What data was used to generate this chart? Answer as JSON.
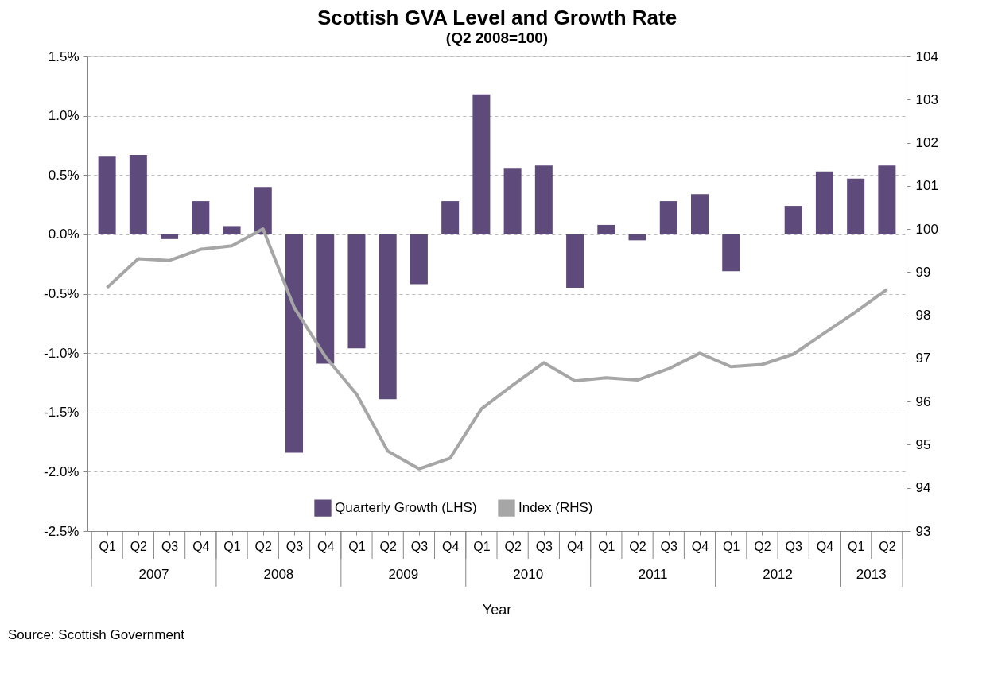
{
  "chart_data": {
    "type": "bar",
    "title": "Scottish GVA Level and Growth Rate",
    "subtitle": "(Q2 2008=100)",
    "xlabel": "Year",
    "categories": [
      "Q1",
      "Q2",
      "Q3",
      "Q4",
      "Q1",
      "Q2",
      "Q3",
      "Q4",
      "Q1",
      "Q2",
      "Q3",
      "Q4",
      "Q1",
      "Q2",
      "Q3",
      "Q4",
      "Q1",
      "Q2",
      "Q3",
      "Q4",
      "Q1",
      "Q2",
      "Q3",
      "Q4",
      "Q1",
      "Q2"
    ],
    "series": [
      {
        "name": "Quarterly Growth (LHS)",
        "color": "#5e4b7c",
        "values": [
          0.66,
          0.67,
          -0.04,
          0.28,
          0.07,
          0.4,
          -1.84,
          -1.09,
          -0.96,
          -1.39,
          -0.42,
          0.28,
          1.18,
          0.56,
          0.58,
          -0.45,
          0.08,
          -0.05,
          0.28,
          0.34,
          -0.31,
          0.0,
          0.24,
          0.53,
          0.47,
          0.58
        ]
      },
      {
        "name": "Index (RHS)",
        "type": "line",
        "axis": "y2",
        "color": "#a6a6a6",
        "values": [
          98.64,
          99.31,
          99.27,
          99.53,
          99.61,
          100.0,
          98.18,
          97.04,
          96.17,
          94.85,
          94.44,
          94.69,
          95.83,
          96.38,
          96.9,
          96.48,
          96.55,
          96.5,
          96.76,
          97.12,
          96.81,
          96.86,
          97.1,
          97.59,
          98.08,
          98.6
        ]
      }
    ],
    "ylim": [
      -2.5,
      1.5
    ],
    "yticks": [
      {
        "value": -2.5,
        "label": "-2.5%"
      },
      {
        "value": -2.0,
        "label": "-2.0%"
      },
      {
        "value": -1.5,
        "label": "-1.5%"
      },
      {
        "value": -1.0,
        "label": "-1.0%"
      },
      {
        "value": -0.5,
        "label": "-0.5%"
      },
      {
        "value": 0.0,
        "label": "0.0%"
      },
      {
        "value": 0.5,
        "label": "0.5%"
      },
      {
        "value": 1.0,
        "label": "1.0%"
      },
      {
        "value": 1.5,
        "label": "1.5%"
      }
    ],
    "y2lim": [
      93,
      104
    ],
    "y2ticks": [
      93,
      94,
      95,
      96,
      97,
      98,
      99,
      100,
      101,
      102,
      103,
      104
    ],
    "grid": "y",
    "legend": "bottom",
    "line_style": "solid",
    "marker": "none",
    "annotations": [
      "2007",
      "2008",
      "2009",
      "2010",
      "2011",
      "2012",
      "2013",
      "Source:  Scottish Government"
    ]
  }
}
